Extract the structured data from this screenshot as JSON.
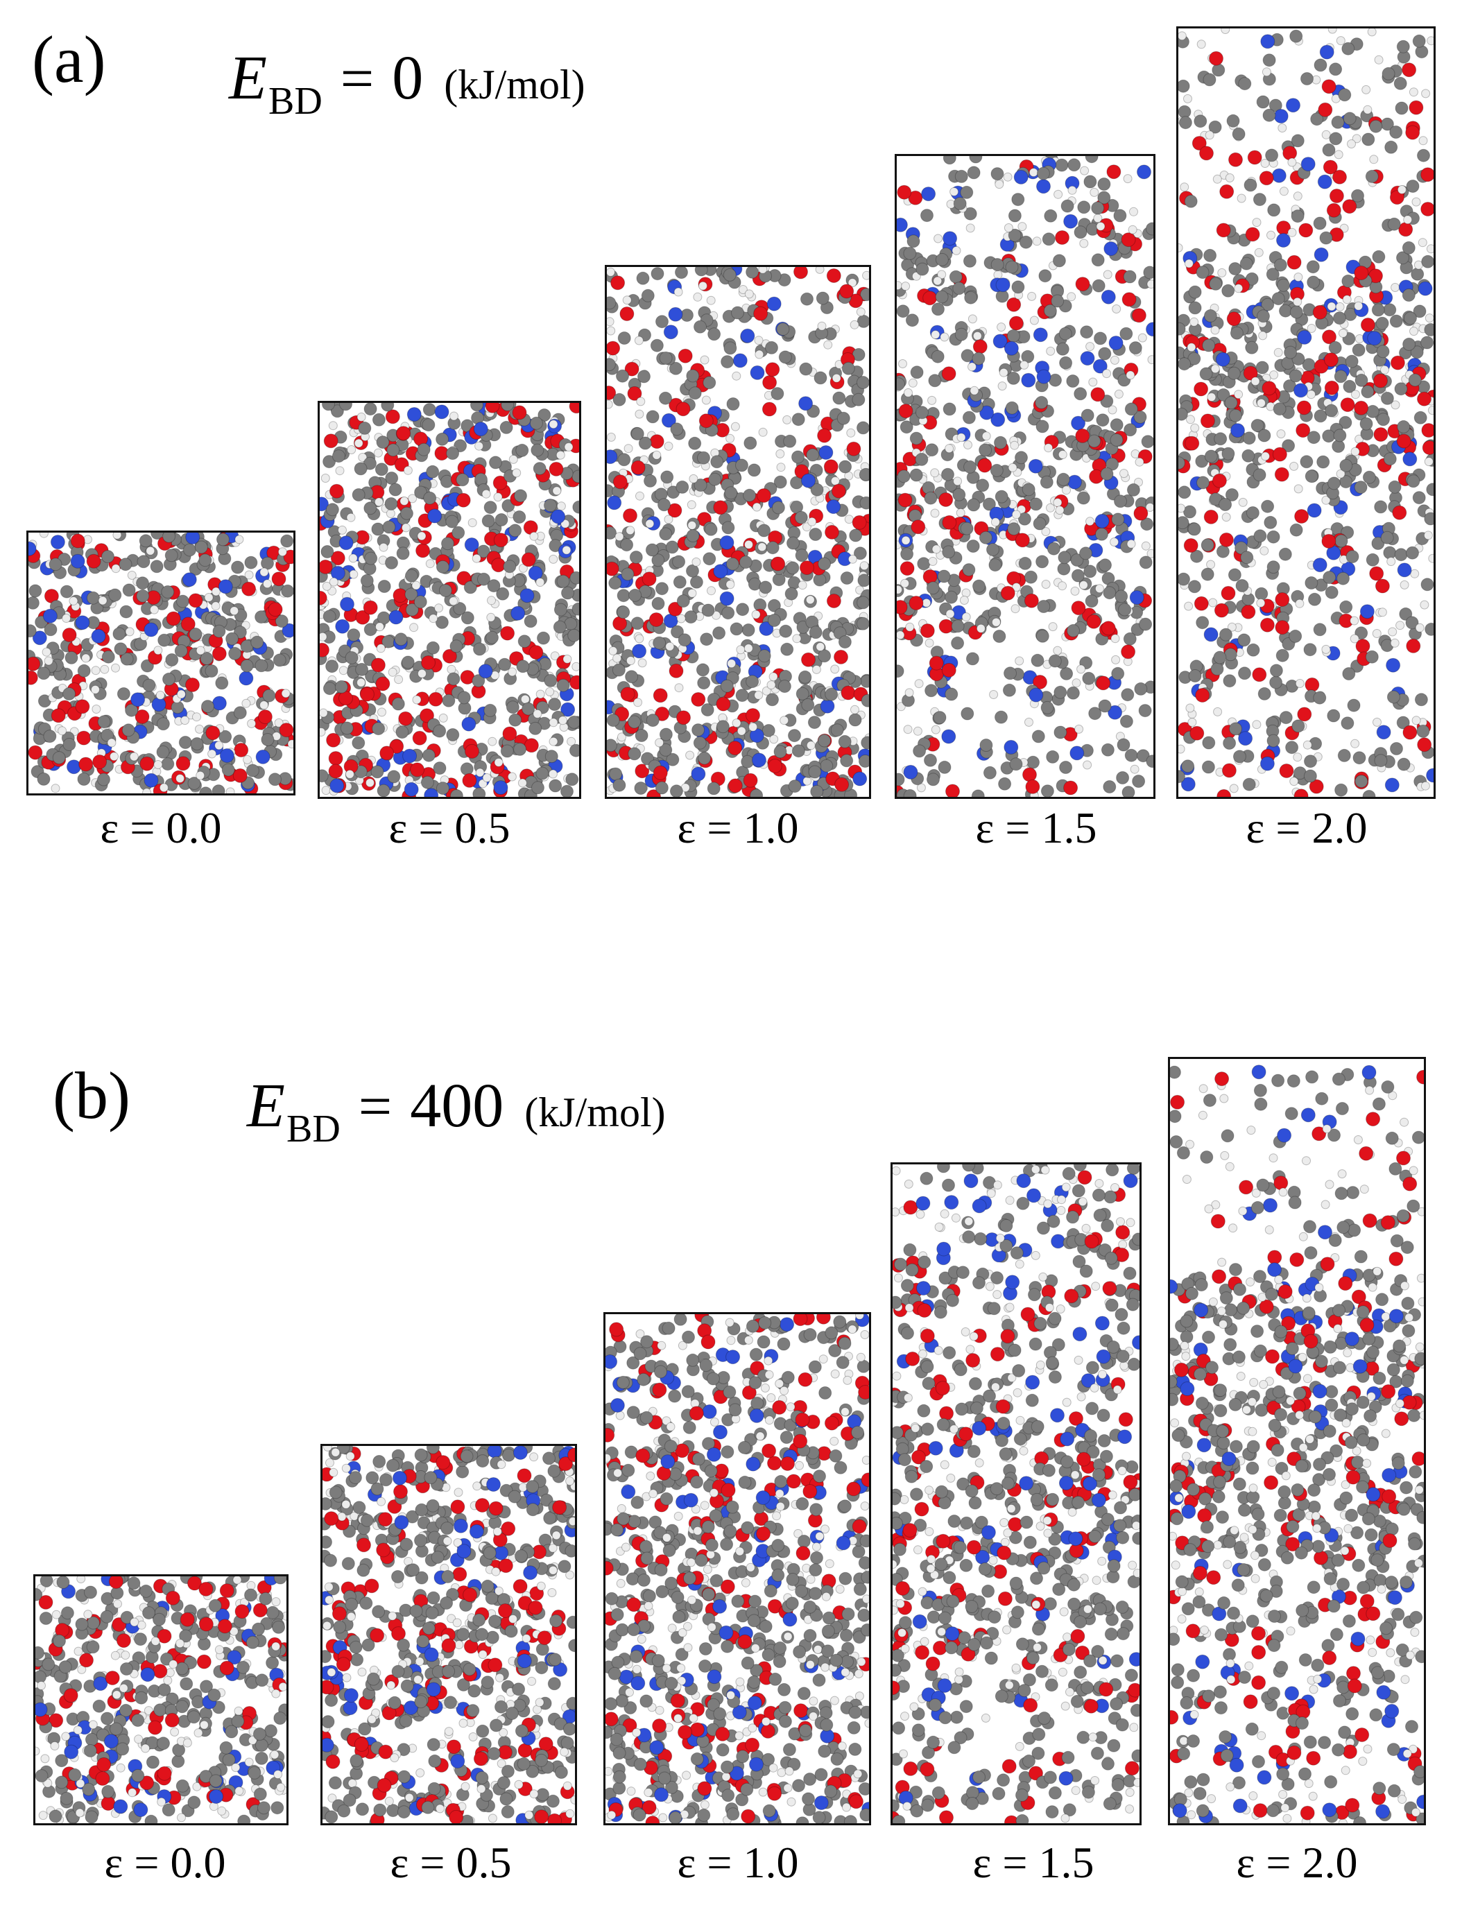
{
  "panels": [
    {
      "label": "(a)",
      "energy": {
        "symbol": "E",
        "subscript": "BD",
        "operator": "=",
        "value": "0",
        "unit": "(kJ/mol)"
      },
      "strains": [
        "ε = 0.0",
        "ε = 0.5",
        "ε = 1.0",
        "ε = 1.5",
        "ε = 2.0"
      ]
    },
    {
      "label": "(b)",
      "energy": {
        "symbol": "E",
        "subscript": "BD",
        "operator": "=",
        "value": "400",
        "unit": "(kJ/mol)"
      },
      "strains": [
        "ε = 0.0",
        "ε = 0.5",
        "ε = 1.0",
        "ε = 1.5",
        "ε = 2.0"
      ]
    }
  ],
  "atom_colors": {
    "carbon": "#7c7c7c",
    "oxygen": "#e0121b",
    "nitrogen": "#2f4fd8",
    "hydrogen": "#ececec"
  }
}
